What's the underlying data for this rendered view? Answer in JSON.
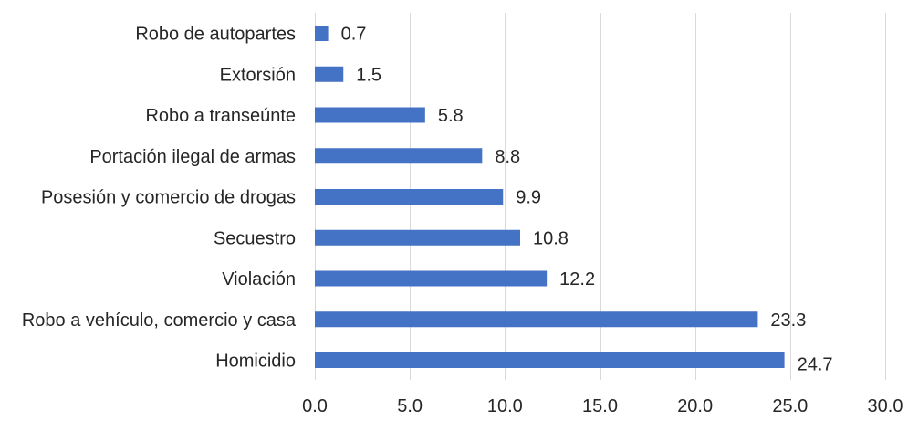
{
  "chart_data": {
    "type": "bar",
    "orientation": "horizontal",
    "title": "",
    "xlabel": "",
    "ylabel": "",
    "categories": [
      "Robo de autopartes",
      "Extorsión",
      "Robo a transeúnte",
      "Portación ilegal de armas",
      "Posesión y comercio de drogas",
      "Secuestro",
      "Violación",
      "Robo a vehículo, comercio y casa",
      "Homicidio"
    ],
    "values": [
      0.7,
      1.5,
      5.8,
      8.8,
      9.9,
      10.8,
      12.2,
      23.3,
      24.7
    ],
    "value_labels": [
      "0.7",
      "1.5",
      "5.8",
      "8.8",
      "9.9",
      "10.8",
      "12.2",
      "23.3",
      "24.7"
    ],
    "xlim": [
      0,
      30
    ],
    "x_ticks": [
      0,
      5,
      10,
      15,
      20,
      25,
      30
    ],
    "x_tick_labels": [
      "0.0",
      "5.0",
      "10.0",
      "15.0",
      "20.0",
      "25.0",
      "30.0"
    ],
    "grid": true,
    "legend": "none",
    "bar_color": "#4472c4",
    "grid_color": "#d9d9d9",
    "text_color": "#262626"
  }
}
